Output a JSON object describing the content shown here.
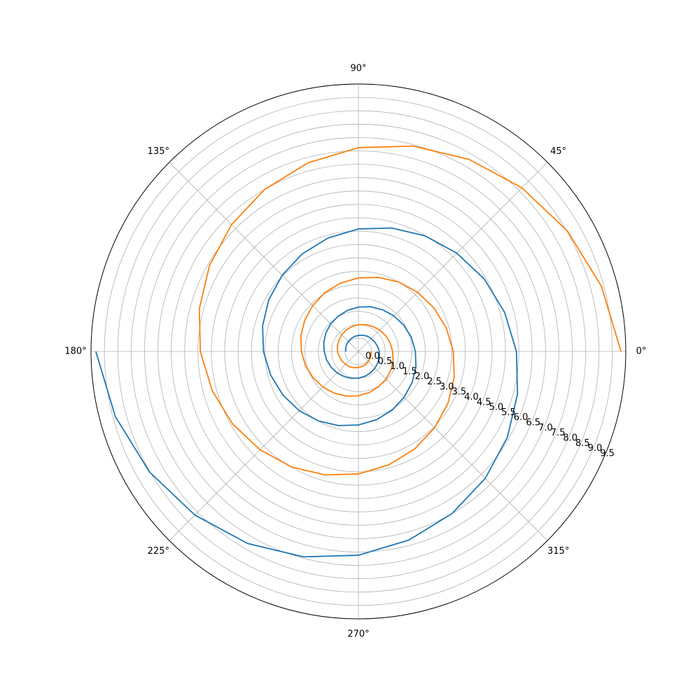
{
  "chart_data": {
    "type": "polar",
    "rlim": [
      0,
      10
    ],
    "rticks": [
      {
        "value": 0,
        "label": "0.0"
      },
      0.5,
      {
        "value": 1,
        "label": "1.0"
      },
      1.5,
      {
        "value": 2,
        "label": "2.0"
      },
      2.5,
      {
        "value": 3,
        "label": "3.0"
      },
      3.5,
      {
        "value": 4,
        "label": "4.0"
      },
      4.5,
      {
        "value": 5,
        "label": "5.0"
      },
      5.5,
      {
        "value": 6,
        "label": "6.0"
      },
      6.5,
      {
        "value": 7,
        "label": "7.0"
      },
      7.5,
      {
        "value": 8,
        "label": "8.0"
      },
      8.5,
      {
        "value": 9,
        "label": "9.0"
      },
      9.5
    ],
    "thetaticks": [
      {
        "value": 0,
        "label": "0°"
      },
      {
        "value": 45,
        "label": "45°"
      },
      {
        "value": 90,
        "label": "90°"
      },
      {
        "value": 135,
        "label": "135°"
      },
      {
        "value": 180,
        "label": "180°"
      },
      {
        "value": 225,
        "label": "225°"
      },
      {
        "value": 270,
        "label": "270°"
      },
      {
        "value": 315,
        "label": "315°"
      }
    ],
    "grid": true,
    "series": [
      {
        "color": "#1f77b4",
        "theta": [
          180,
          195,
          210,
          225,
          240,
          255,
          270,
          285,
          300,
          315,
          330,
          345,
          360,
          375,
          390,
          405,
          420,
          435,
          450,
          465,
          480,
          495,
          510,
          525,
          540,
          555,
          570,
          585,
          600,
          615,
          630,
          645,
          660,
          675,
          690,
          705,
          720,
          735,
          750,
          765,
          780,
          795,
          810,
          825,
          840,
          855,
          870,
          885,
          900,
          915,
          930,
          945,
          960,
          975,
          990,
          1005,
          1020,
          1035,
          1050,
          1065,
          1080,
          1095,
          1110,
          1125,
          1140,
          1155,
          1170,
          1185,
          1200,
          1215,
          1230,
          1245,
          1260
        ],
        "r": [
          9.82,
          9.41,
          9.02,
          8.65,
          8.29,
          7.95,
          7.62,
          7.3,
          7.0,
          6.71,
          6.43,
          6.16,
          5.91,
          5.66,
          5.43,
          5.2,
          4.99,
          4.78,
          4.58,
          4.39,
          4.21,
          4.03,
          3.87,
          3.71,
          3.55,
          3.4,
          3.26,
          3.13,
          3.0,
          2.87,
          2.75,
          2.64,
          2.53,
          2.42,
          2.32,
          2.23,
          2.13,
          2.05,
          1.96,
          1.88,
          1.8,
          1.73,
          1.66,
          1.59,
          1.52,
          1.46,
          1.4,
          1.34,
          1.28,
          1.23,
          1.18,
          1.13,
          1.08,
          1.04,
          1.0,
          0.96,
          0.92,
          0.88,
          0.84,
          0.81,
          0.78,
          0.74,
          0.71,
          0.68,
          0.66,
          0.63,
          0.6,
          0.58,
          0.55,
          0.53,
          0.51,
          0.49,
          0.47
        ]
      },
      {
        "color": "#ff7f0e",
        "theta": [
          0,
          15,
          30,
          45,
          60,
          75,
          90,
          105,
          120,
          135,
          150,
          165,
          180,
          195,
          210,
          225,
          240,
          255,
          270,
          285,
          300,
          315,
          330,
          345,
          360,
          375,
          390,
          405,
          420,
          435,
          450,
          465,
          480,
          495,
          510,
          525,
          540,
          555,
          570,
          585,
          600,
          615,
          630,
          645,
          660,
          675,
          690,
          705,
          720,
          735,
          750,
          765,
          780,
          795,
          810,
          825,
          840,
          855,
          870,
          885,
          900,
          915,
          930,
          945,
          960,
          975,
          990,
          1005,
          1020,
          1035,
          1050,
          1065,
          1080
        ],
        "r": [
          9.82,
          9.41,
          9.02,
          8.65,
          8.29,
          7.95,
          7.62,
          7.3,
          7.0,
          6.71,
          6.43,
          6.16,
          5.91,
          5.66,
          5.43,
          5.2,
          4.99,
          4.78,
          4.58,
          4.39,
          4.21,
          4.03,
          3.87,
          3.71,
          3.55,
          3.4,
          3.26,
          3.13,
          3.0,
          2.87,
          2.75,
          2.64,
          2.53,
          2.42,
          2.32,
          2.23,
          2.13,
          2.05,
          1.96,
          1.88,
          1.8,
          1.73,
          1.66,
          1.59,
          1.52,
          1.46,
          1.4,
          1.34,
          1.28,
          1.23,
          1.18,
          1.13,
          1.08,
          1.04,
          1.0,
          0.96,
          0.92,
          0.88,
          0.84,
          0.81,
          0.78,
          0.74,
          0.71,
          0.68,
          0.66,
          0.63,
          0.6,
          0.58,
          0.55,
          0.53,
          0.51,
          0.49,
          0.47
        ]
      }
    ]
  }
}
